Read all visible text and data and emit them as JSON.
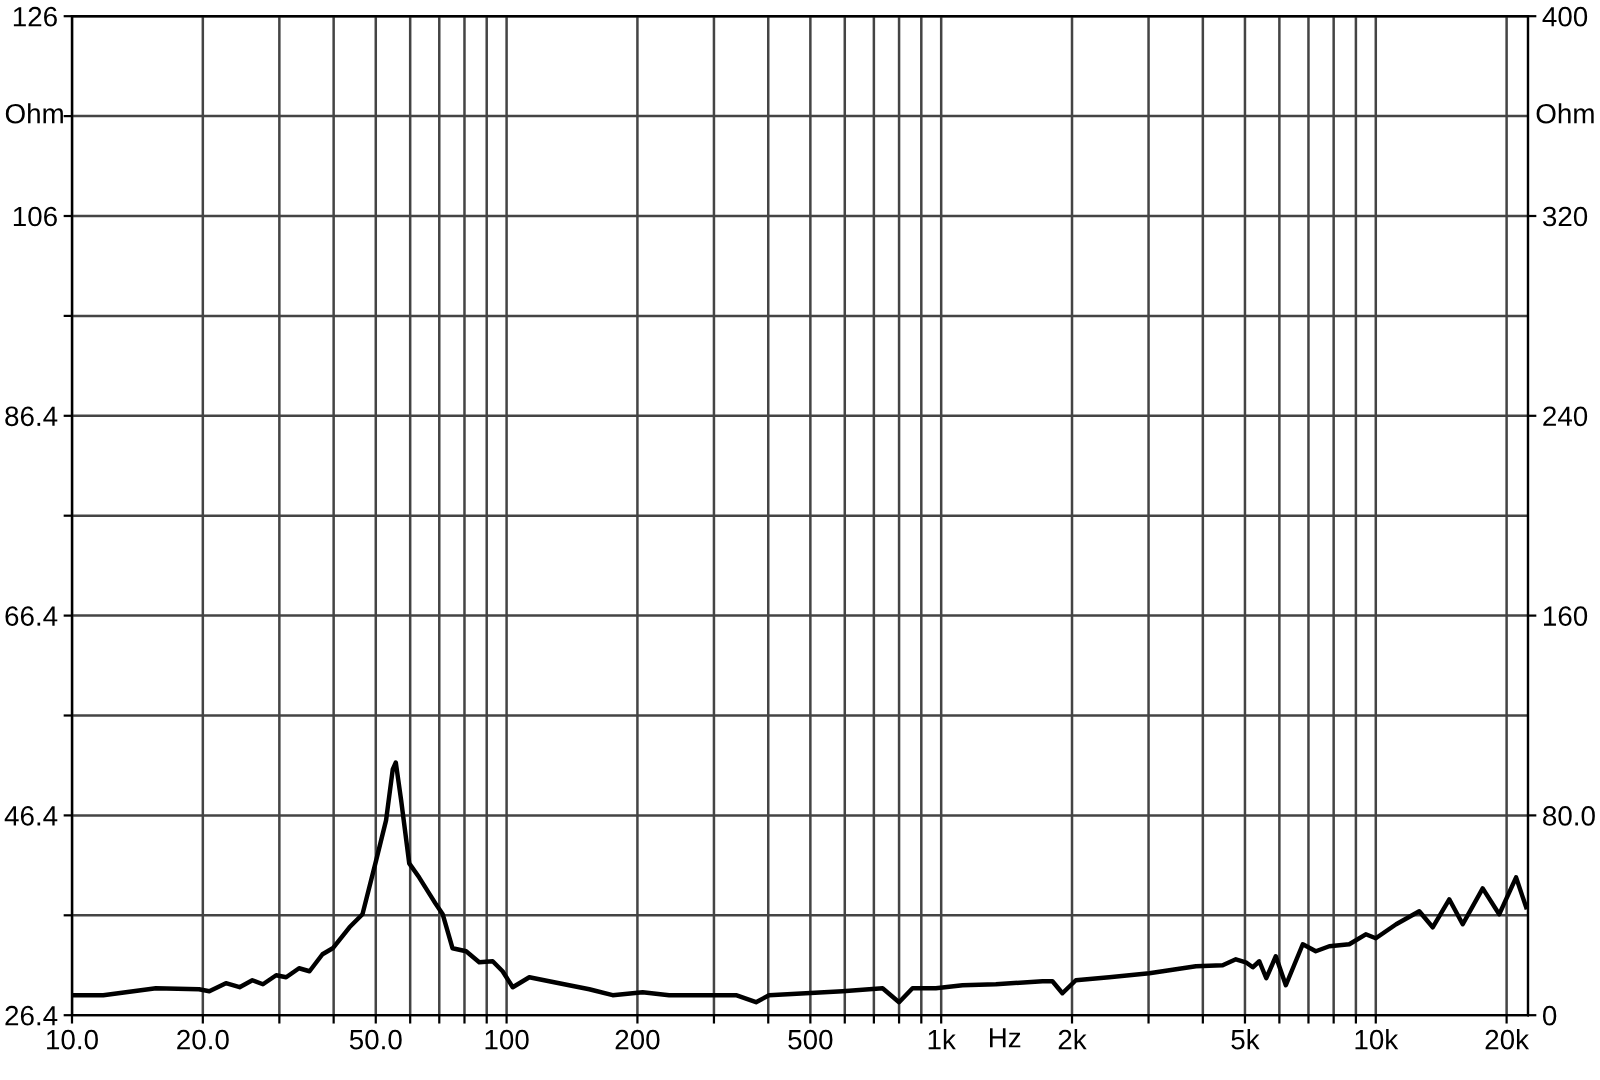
{
  "chart_data": {
    "type": "line",
    "xlabel": "Hz",
    "ylabel": "Ohm",
    "y2label": "Ohm",
    "log": "x",
    "grid": true,
    "marker": "none",
    "line_style": "solid",
    "xlim": [
      10,
      22400
    ],
    "xticks": [
      {
        "value": 10,
        "label": "10.0"
      },
      {
        "value": 20,
        "label": "20.0"
      },
      {
        "value": 30,
        "label": null
      },
      {
        "value": 40,
        "label": null
      },
      {
        "value": 50,
        "label": "50.0"
      },
      {
        "value": 60,
        "label": null
      },
      {
        "value": 70,
        "label": null
      },
      {
        "value": 80,
        "label": null
      },
      {
        "value": 90,
        "label": null
      },
      100,
      200,
      {
        "value": 300,
        "label": null
      },
      {
        "value": 400,
        "label": null
      },
      500,
      {
        "value": 600,
        "label": null
      },
      {
        "value": 700,
        "label": null
      },
      {
        "value": 800,
        "label": null
      },
      {
        "value": 900,
        "label": null
      },
      {
        "value": 1000,
        "label": "1k"
      },
      {
        "value": 2000,
        "label": "2k"
      },
      {
        "value": 3000,
        "label": null
      },
      {
        "value": 4000,
        "label": null
      },
      {
        "value": 5000,
        "label": "5k"
      },
      {
        "value": 6000,
        "label": null
      },
      {
        "value": 7000,
        "label": null
      },
      {
        "value": 8000,
        "label": null
      },
      {
        "value": 9000,
        "label": null
      },
      {
        "value": 10000,
        "label": "10k"
      },
      {
        "value": 20000,
        "label": "20k"
      }
    ],
    "ylim": [
      26.4,
      126.4
    ],
    "yticks": [
      26.4,
      {
        "value": 36.4,
        "label": null
      },
      46.4,
      {
        "value": 56.4,
        "label": null
      },
      66.4,
      {
        "value": 76.4,
        "label": null
      },
      86.4,
      {
        "value": 96.4,
        "label": null
      },
      {
        "value": 106.4,
        "label": "106"
      },
      {
        "value": 116.4,
        "label": null
      },
      {
        "value": 126.4,
        "label": "126"
      }
    ],
    "y2lim": [
      0,
      400
    ],
    "y2ticks": [
      0,
      {
        "value": 80,
        "label": "80.0"
      },
      160,
      240,
      320,
      400
    ],
    "series": [
      {
        "color": "#000000",
        "x": [
          10.0,
          11.8,
          15.6,
          19.6,
          20.7,
          22.6,
          24.3,
          26.0,
          27.5,
          29.5,
          31.1,
          33.3,
          35.2,
          37.7,
          39.8,
          43.5,
          46.6,
          50.1,
          52.8,
          54.7,
          55.6,
          57.2,
          59.7,
          62.9,
          68.8,
          71.3,
          75.1,
          80.7,
          86.5,
          92.9,
          97.9,
          103.3,
          112.8,
          125.3,
          139.3,
          155.0,
          175.4,
          205.6,
          236.6,
          292.4,
          337.2,
          374.9,
          401.6,
          593,
          733,
          800,
          859,
          972,
          1120,
          1336,
          1711,
          1803,
          1901,
          2041,
          2436,
          3013,
          3857,
          4443,
          4765,
          5023,
          5212,
          5395,
          5598,
          5888,
          6209,
          6792,
          7278,
          7816,
          8690,
          9484,
          10000,
          11140,
          12590,
          13520,
          14760,
          15850,
          17620,
          19230,
          21030,
          22180
        ],
        "values": [
          28.4,
          28.4,
          29.1,
          29.0,
          28.8,
          29.6,
          29.2,
          29.9,
          29.5,
          30.4,
          30.2,
          31.1,
          30.8,
          32.5,
          33.1,
          35.2,
          36.5,
          41.9,
          45.9,
          51.0,
          51.7,
          47.9,
          41.6,
          40.2,
          37.5,
          36.5,
          33.1,
          32.8,
          31.7,
          31.8,
          30.8,
          29.2,
          30.2,
          29.8,
          29.4,
          29.0,
          28.4,
          28.7,
          28.4,
          28.4,
          28.4,
          27.7,
          28.4,
          28.8,
          29.1,
          27.7,
          29.1,
          29.1,
          29.4,
          29.5,
          29.8,
          29.8,
          28.6,
          29.9,
          30.2,
          30.6,
          31.3,
          31.4,
          32.0,
          31.7,
          31.2,
          31.8,
          30.1,
          32.3,
          29.4,
          33.5,
          32.8,
          33.3,
          33.5,
          34.5,
          34.1,
          35.5,
          36.8,
          35.2,
          38.0,
          35.5,
          39.1,
          36.5,
          40.2,
          37.2
        ]
      }
    ]
  }
}
